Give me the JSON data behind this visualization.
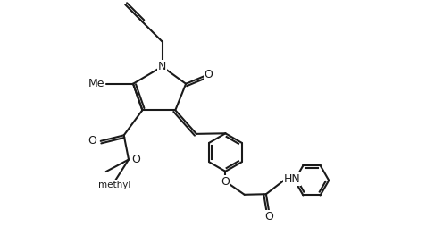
{
  "bg_color": "#ffffff",
  "line_color": "#1a1a1a",
  "line_width": 1.5,
  "font_size": 9.0,
  "fig_width": 4.96,
  "fig_height": 2.82,
  "dpi": 100,
  "xlim": [
    -1.0,
    11.0
  ],
  "ylim": [
    -2.5,
    7.0
  ]
}
